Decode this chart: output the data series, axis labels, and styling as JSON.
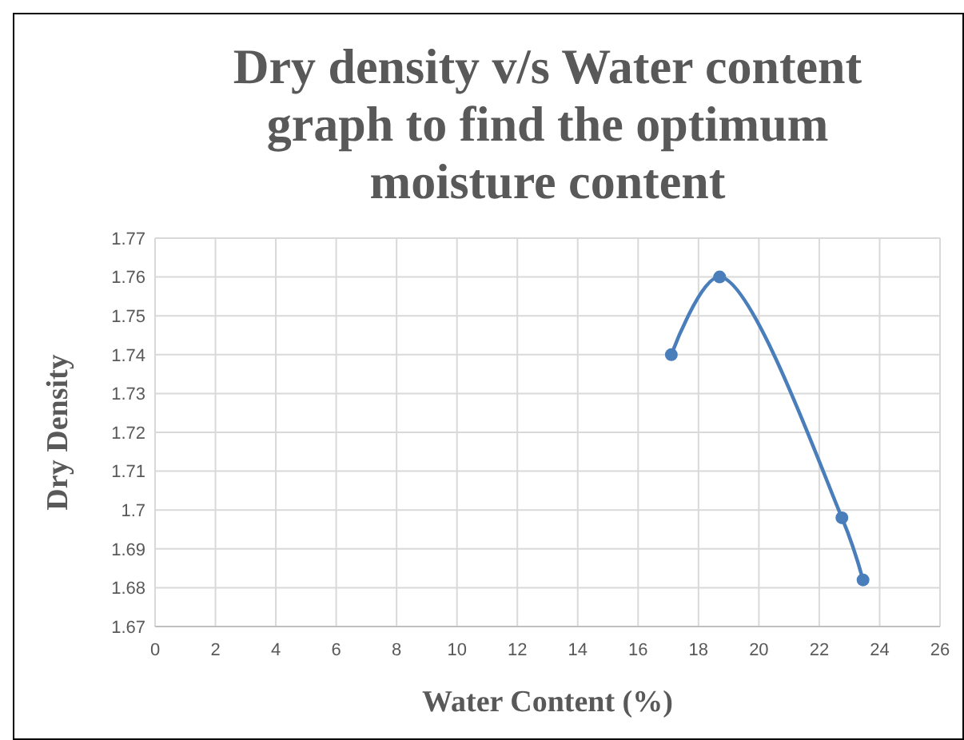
{
  "chart_data": {
    "type": "line",
    "title": "Dry density v/s Water content graph to find the optimum moisture content",
    "xlabel": "Water Content (%)",
    "ylabel": "Dry Density",
    "x": [
      17.1,
      18.7,
      22.75,
      23.45
    ],
    "series": [
      {
        "color": "#4a7ebb",
        "values": [
          1.74,
          1.76,
          1.698,
          1.682
        ]
      }
    ],
    "xlim": [
      0,
      26
    ],
    "xticks": [
      0,
      2,
      4,
      6,
      8,
      10,
      12,
      14,
      16,
      18,
      20,
      22,
      24,
      26
    ],
    "ylim": [
      1.67,
      1.77
    ],
    "yticks": [
      1.67,
      1.68,
      1.69,
      1.7,
      1.71,
      1.72,
      1.73,
      1.74,
      1.75,
      1.76,
      1.77
    ],
    "grid": true,
    "marker": "circle",
    "line_style": "solid"
  }
}
